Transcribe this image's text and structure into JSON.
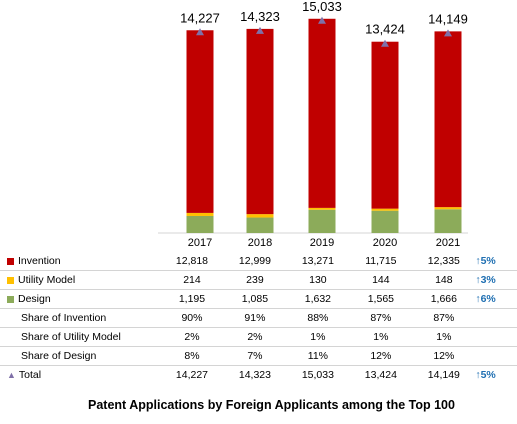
{
  "chart_data": {
    "type": "bar",
    "stacked": true,
    "title": "Patent Applications by Foreign Applicants among the Top 100",
    "categories": [
      "2017",
      "2018",
      "2019",
      "2020",
      "2021"
    ],
    "series": [
      {
        "name": "Invention",
        "color": "#c00000",
        "values": [
          12818,
          12999,
          13271,
          11715,
          12335
        ]
      },
      {
        "name": "Utility Model",
        "color": "#ffc000",
        "values": [
          214,
          239,
          130,
          144,
          148
        ]
      },
      {
        "name": "Design",
        "color": "#8cab5a",
        "values": [
          1195,
          1085,
          1632,
          1565,
          1666
        ]
      }
    ],
    "totals": {
      "name": "Total",
      "marker": "triangle",
      "color": "#7f70a8",
      "values": [
        14227,
        14323,
        15033,
        13424,
        14149
      ]
    },
    "total_labels": [
      "14,227",
      "14,323",
      "15,033",
      "13,424",
      "14,149"
    ],
    "table": {
      "columns": [
        "2017",
        "2018",
        "2019",
        "2020",
        "2021"
      ],
      "rows": [
        {
          "label": "Invention",
          "key": "invention",
          "legend": "square",
          "color": "#c00000",
          "cells": [
            "12,818",
            "12,999",
            "13,271",
            "11,715",
            "12,335"
          ],
          "change": "5%",
          "change_icon": "up-arrow-icon"
        },
        {
          "label": "Utility Model",
          "key": "utility",
          "legend": "square",
          "color": "#ffc000",
          "cells": [
            "214",
            "239",
            "130",
            "144",
            "148"
          ],
          "change": "3%",
          "change_icon": "up-arrow-icon"
        },
        {
          "label": "Design",
          "key": "design",
          "legend": "square",
          "color": "#8cab5a",
          "cells": [
            "1,195",
            "1,085",
            "1,632",
            "1,565",
            "1,666"
          ],
          "change": "6%",
          "change_icon": "up-arrow-icon"
        },
        {
          "label": "Share of Invention",
          "key": "share-invention",
          "legend": "none",
          "cells": [
            "90%",
            "91%",
            "88%",
            "87%",
            "87%"
          ],
          "change": ""
        },
        {
          "label": "Share of Utility Model",
          "key": "share-utility",
          "legend": "none",
          "cells": [
            "2%",
            "2%",
            "1%",
            "1%",
            "1%"
          ],
          "change": ""
        },
        {
          "label": "Share of Design",
          "key": "share-design",
          "legend": "none",
          "cells": [
            "8%",
            "7%",
            "11%",
            "12%",
            "12%"
          ],
          "change": ""
        },
        {
          "label": "Total",
          "key": "total",
          "legend": "triangle",
          "color": "#7f70a8",
          "cells": [
            "14,227",
            "14,323",
            "15,033",
            "13,424",
            "14,149"
          ],
          "change": "5%",
          "change_icon": "up-arrow-icon"
        }
      ]
    },
    "ylim": [
      0,
      16000
    ],
    "grid": false
  }
}
